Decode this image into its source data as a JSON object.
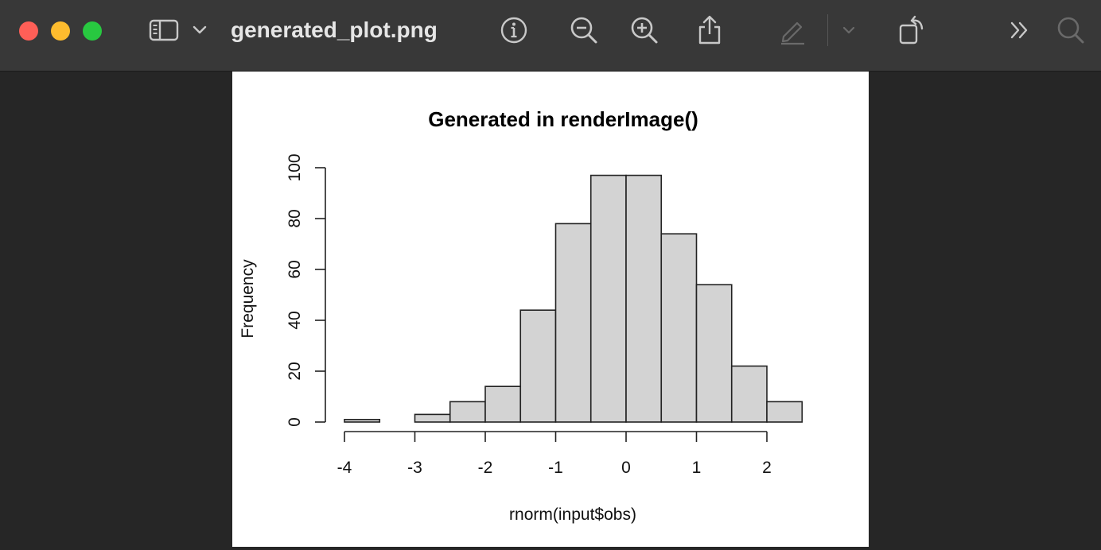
{
  "window": {
    "title": "generated_plot.png"
  },
  "toolbar": {
    "icons": [
      "sidebar-icon",
      "chevron-down-icon",
      "info-icon",
      "zoom-out-icon",
      "zoom-in-icon",
      "share-icon",
      "markup-icon",
      "chevron-down-icon",
      "rotate-icon",
      "more-icon",
      "search-icon"
    ]
  },
  "chart_data": {
    "type": "bar",
    "title": "Generated in renderImage()",
    "xlabel": "rnorm(input$obs)",
    "ylabel": "Frequency",
    "bin_edges": [
      -4,
      -3.5,
      -3,
      -2.5,
      -2,
      -1.5,
      -1,
      -0.5,
      0,
      0.5,
      1,
      1.5,
      2,
      2.5
    ],
    "values": [
      1,
      0,
      3,
      8,
      14,
      44,
      78,
      97,
      97,
      74,
      54,
      22,
      8
    ],
    "xlim": [
      -4,
      2.5
    ],
    "ylim": [
      0,
      100
    ],
    "x_ticks": [
      "-4",
      "-3",
      "-2",
      "-1",
      "0",
      "1",
      "2"
    ],
    "y_ticks": [
      "0",
      "20",
      "40",
      "60",
      "80",
      "100"
    ],
    "bar_fill": "#d3d3d3",
    "bar_stroke": "#222222",
    "grid": false
  }
}
